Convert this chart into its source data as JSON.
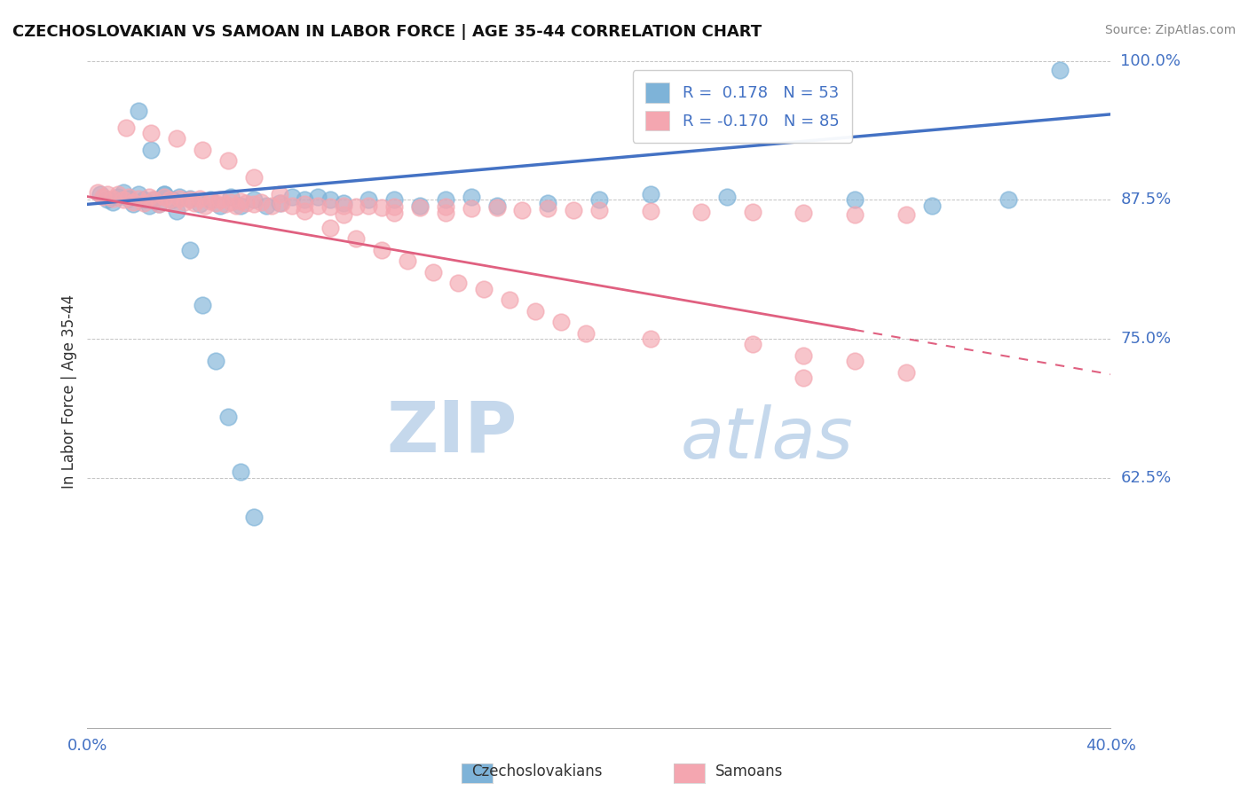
{
  "title": "CZECHOSLOVAKIAN VS SAMOAN IN LABOR FORCE | AGE 35-44 CORRELATION CHART",
  "source": "Source: ZipAtlas.com",
  "ylabel": "In Labor Force | Age 35-44",
  "xlim": [
    0.0,
    0.4
  ],
  "ylim": [
    0.4,
    1.005
  ],
  "ytick_positions": [
    0.625,
    0.75,
    0.875,
    1.0
  ],
  "ytick_labels": [
    "62.5%",
    "75.0%",
    "87.5%",
    "100.0%"
  ],
  "legend_r_czech": "0.178",
  "legend_n_czech": 53,
  "legend_r_samoan": "-0.170",
  "legend_n_samoan": 85,
  "blue_color": "#7EB3D8",
  "pink_color": "#F4A6B0",
  "trend_blue": "#4472C4",
  "trend_pink": "#E06080",
  "watermark_zip": "ZIP",
  "watermark_atlas": "atlas",
  "watermark_color": "#C5D8EC",
  "title_color": "#111111",
  "axis_label_color": "#4472C4",
  "tick_label_color": "#4472C4",
  "czech_x": [
    0.005,
    0.008,
    0.01,
    0.012,
    0.014,
    0.016,
    0.018,
    0.02,
    0.022,
    0.024,
    0.026,
    0.028,
    0.03,
    0.033,
    0.036,
    0.04,
    0.044,
    0.048,
    0.052,
    0.056,
    0.06,
    0.065,
    0.07,
    0.075,
    0.08,
    0.085,
    0.09,
    0.095,
    0.1,
    0.11,
    0.12,
    0.13,
    0.14,
    0.15,
    0.16,
    0.18,
    0.2,
    0.22,
    0.25,
    0.3,
    0.33,
    0.36,
    0.38,
    0.02,
    0.025,
    0.03,
    0.035,
    0.04,
    0.045,
    0.05,
    0.055,
    0.06,
    0.065
  ],
  "czech_y": [
    0.88,
    0.875,
    0.873,
    0.878,
    0.882,
    0.876,
    0.871,
    0.88,
    0.875,
    0.87,
    0.875,
    0.871,
    0.88,
    0.875,
    0.878,
    0.876,
    0.871,
    0.875,
    0.87,
    0.878,
    0.87,
    0.875,
    0.87,
    0.872,
    0.878,
    0.875,
    0.878,
    0.875,
    0.872,
    0.875,
    0.875,
    0.87,
    0.875,
    0.878,
    0.87,
    0.872,
    0.875,
    0.88,
    0.878,
    0.875,
    0.87,
    0.875,
    0.992,
    0.955,
    0.92,
    0.88,
    0.865,
    0.83,
    0.78,
    0.73,
    0.68,
    0.63,
    0.59
  ],
  "samoan_x": [
    0.004,
    0.006,
    0.008,
    0.01,
    0.012,
    0.014,
    0.016,
    0.018,
    0.02,
    0.022,
    0.024,
    0.026,
    0.028,
    0.03,
    0.032,
    0.034,
    0.036,
    0.038,
    0.04,
    0.042,
    0.044,
    0.046,
    0.048,
    0.05,
    0.052,
    0.054,
    0.056,
    0.058,
    0.06,
    0.062,
    0.065,
    0.068,
    0.072,
    0.076,
    0.08,
    0.085,
    0.09,
    0.095,
    0.1,
    0.105,
    0.11,
    0.115,
    0.12,
    0.13,
    0.14,
    0.15,
    0.16,
    0.17,
    0.18,
    0.19,
    0.2,
    0.22,
    0.24,
    0.26,
    0.28,
    0.3,
    0.32,
    0.1,
    0.12,
    0.14,
    0.015,
    0.025,
    0.035,
    0.045,
    0.055,
    0.065,
    0.075,
    0.085,
    0.095,
    0.105,
    0.115,
    0.125,
    0.135,
    0.145,
    0.155,
    0.165,
    0.175,
    0.185,
    0.195,
    0.22,
    0.26,
    0.28,
    0.3,
    0.32,
    0.28
  ],
  "samoan_y": [
    0.882,
    0.878,
    0.88,
    0.876,
    0.88,
    0.875,
    0.878,
    0.873,
    0.876,
    0.872,
    0.878,
    0.875,
    0.871,
    0.878,
    0.875,
    0.872,
    0.876,
    0.873,
    0.875,
    0.872,
    0.876,
    0.87,
    0.874,
    0.872,
    0.875,
    0.871,
    0.873,
    0.87,
    0.874,
    0.872,
    0.871,
    0.873,
    0.87,
    0.872,
    0.87,
    0.871,
    0.87,
    0.869,
    0.87,
    0.869,
    0.87,
    0.868,
    0.869,
    0.868,
    0.869,
    0.867,
    0.868,
    0.866,
    0.867,
    0.866,
    0.866,
    0.865,
    0.864,
    0.864,
    0.863,
    0.862,
    0.862,
    0.862,
    0.863,
    0.863,
    0.94,
    0.935,
    0.93,
    0.92,
    0.91,
    0.895,
    0.88,
    0.865,
    0.85,
    0.84,
    0.83,
    0.82,
    0.81,
    0.8,
    0.795,
    0.785,
    0.775,
    0.765,
    0.755,
    0.75,
    0.745,
    0.735,
    0.73,
    0.72,
    0.715
  ],
  "cz_trend_x0": 0.0,
  "cz_trend_y0": 0.871,
  "cz_trend_x1": 0.4,
  "cz_trend_y1": 0.952,
  "sa_trend_solid_x0": 0.0,
  "sa_trend_solid_y0": 0.878,
  "sa_trend_solid_x1": 0.3,
  "sa_trend_solid_y1": 0.758,
  "sa_trend_dash_x0": 0.3,
  "sa_trend_dash_y0": 0.758,
  "sa_trend_dash_x1": 0.4,
  "sa_trend_dash_y1": 0.718
}
